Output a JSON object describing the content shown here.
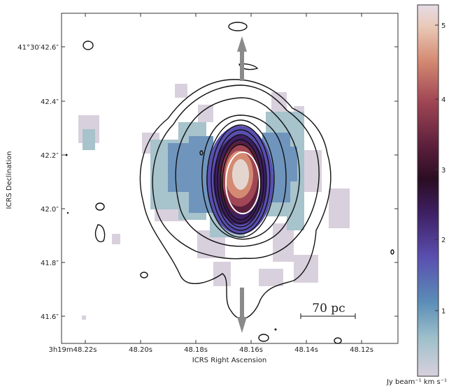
{
  "axes": {
    "xlabel": "ICRS Right Ascension",
    "ylabel": "ICRS Declination",
    "x_ticks": [
      "3h19m48.22s",
      "48.20s",
      "48.18s",
      "48.16s",
      "48.14s",
      "48.12s"
    ],
    "y_ticks": [
      "41°30′42.6″",
      "42.4″",
      "42.2″",
      "42.0″",
      "41.8″",
      "41.6″"
    ]
  },
  "colorbar": {
    "label": "Jy beam⁻¹ km s⁻¹",
    "ticks": [
      "1",
      "2",
      "3",
      "4",
      "5"
    ],
    "range": [
      0,
      5.3
    ],
    "colormap": [
      "#d9d0dd",
      "#9fc1cb",
      "#5b8db7",
      "#5a4fb0",
      "#3e1f63",
      "#2a0d22",
      "#5c1f3c",
      "#a04654",
      "#d48a72",
      "#e9c8b6",
      "#e6dce6"
    ]
  },
  "scalebar": {
    "label": "70 pc"
  },
  "colors": {
    "contour": "#111111",
    "inner_contour": "#ffffff",
    "arrow": "#8a8a8a"
  },
  "annotations": {
    "arrows": [
      "outflow-north",
      "outflow-south"
    ]
  }
}
